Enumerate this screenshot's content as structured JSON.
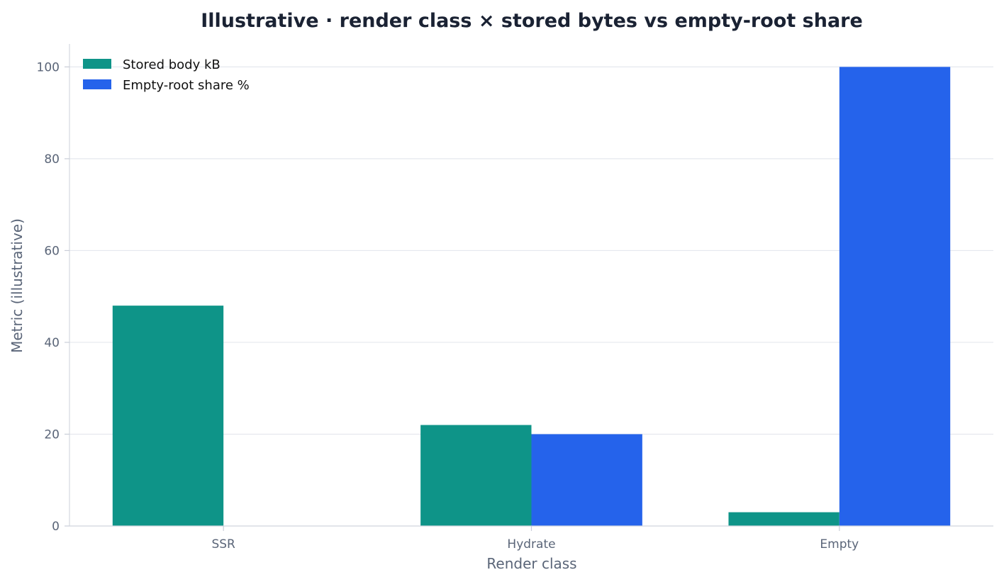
{
  "chart_data": {
    "type": "bar",
    "title": "Illustrative · render class × stored bytes vs empty-root share",
    "xlabel": "Render class",
    "ylabel": "Metric (illustrative)",
    "categories": [
      "SSR",
      "Hydrate",
      "Empty"
    ],
    "series": [
      {
        "name": "Stored body kB",
        "values": [
          48,
          22,
          3
        ],
        "color": "#0e9488"
      },
      {
        "name": "Empty-root share %",
        "values": [
          0,
          20,
          100
        ],
        "color": "#2563eb"
      }
    ],
    "ylim": [
      0,
      105
    ],
    "yticks": [
      0,
      20,
      40,
      60,
      80,
      100
    ],
    "grid": "horizontal",
    "legend_position": "top-left"
  }
}
